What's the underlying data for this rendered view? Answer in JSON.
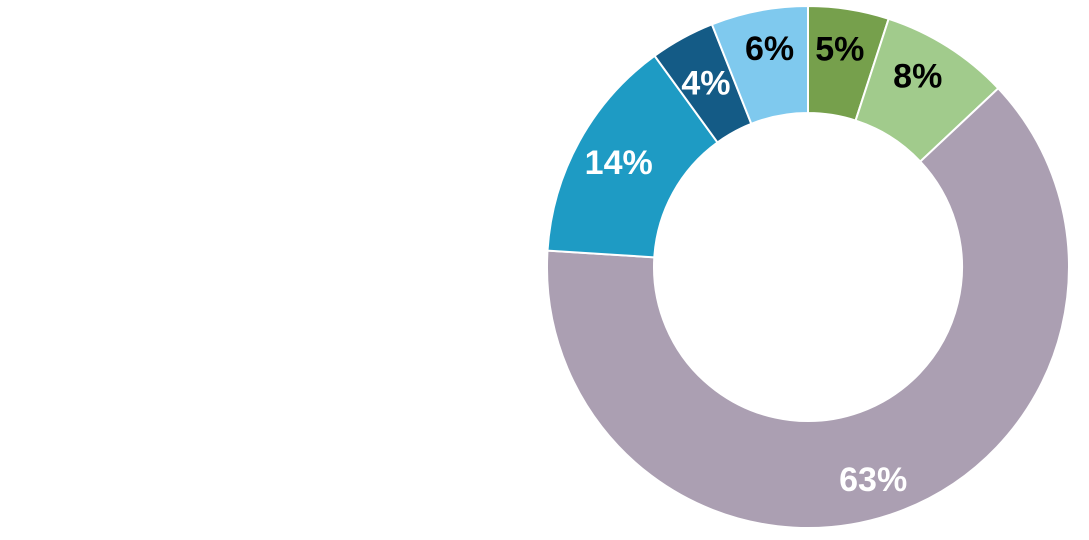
{
  "chart_data": {
    "type": "pie",
    "donut": true,
    "start_angle_deg": 0,
    "direction": "clockwise",
    "slices": [
      {
        "label": "5%",
        "value": 5,
        "color": "#76a04c",
        "label_color": "#000000"
      },
      {
        "label": "8%",
        "value": 8,
        "color": "#a1cb8c",
        "label_color": "#000000"
      },
      {
        "label": "63%",
        "value": 63,
        "color": "#ab9fb2",
        "label_color": "#ffffff"
      },
      {
        "label": "14%",
        "value": 14,
        "color": "#1e9bc4",
        "label_color": "#ffffff"
      },
      {
        "label": "4%",
        "value": 4,
        "color": "#145b86",
        "label_color": "#ffffff"
      },
      {
        "label": "6%",
        "value": 6,
        "color": "#7fc9ee",
        "label_color": "#000000"
      }
    ]
  }
}
